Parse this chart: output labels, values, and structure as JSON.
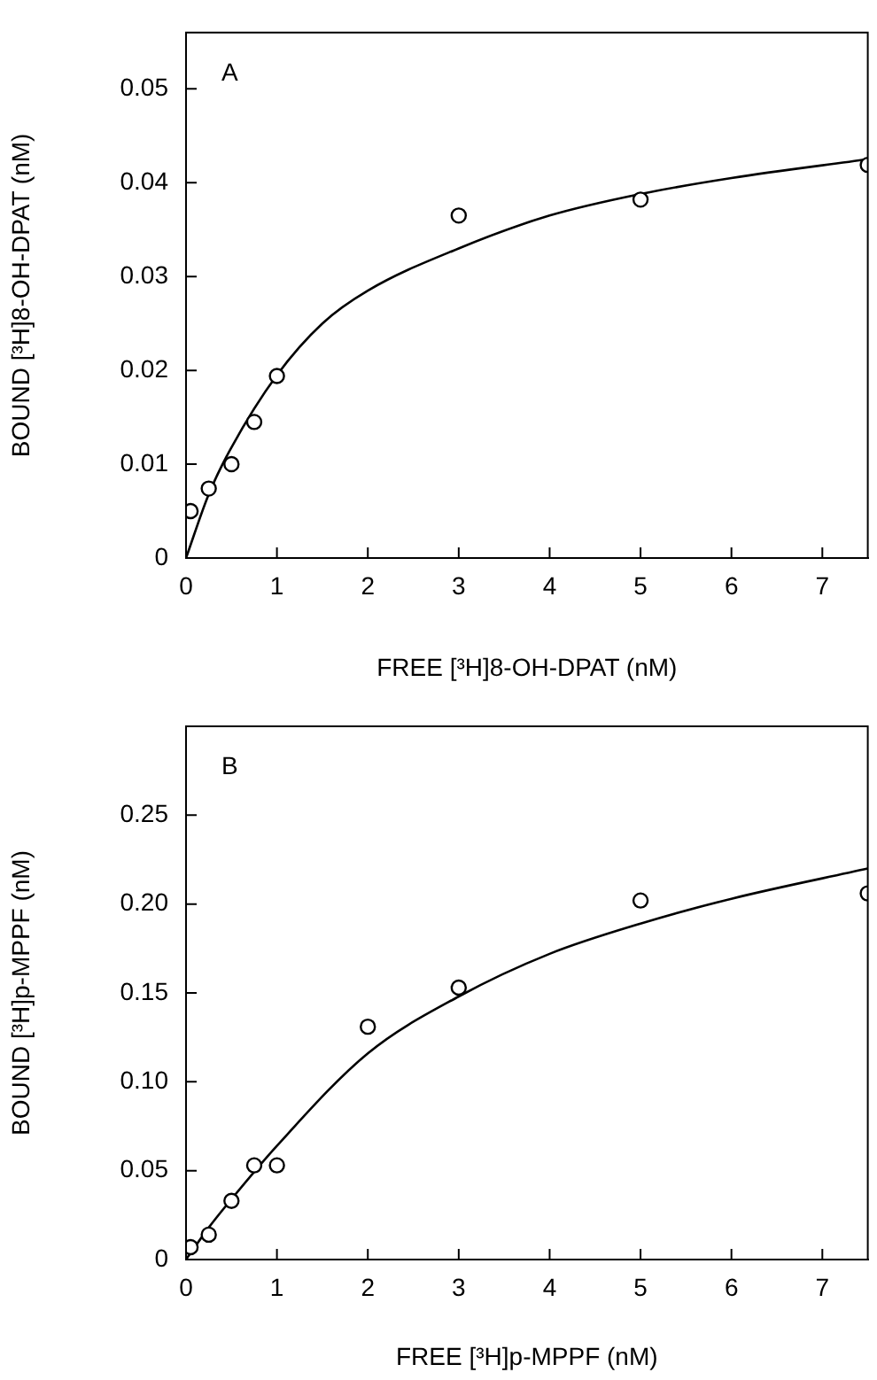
{
  "chart_data": [
    {
      "type": "scatter",
      "xlabel": "FREE [³H]8-OH-DPAT (nM)",
      "ylabel": "BOUND [³H]8-OH-DPAT (nM)",
      "annotations": [
        "A"
      ],
      "xlim": [
        0,
        7.5
      ],
      "xticks": [
        0,
        1,
        2,
        3,
        4,
        5,
        6,
        7
      ],
      "ylim": [
        0,
        0.056
      ],
      "yticks": [
        0,
        {
          "value": 0.01,
          "label": "0.01"
        },
        {
          "value": 0.02,
          "label": "0.02"
        },
        {
          "value": 0.03,
          "label": "0.03"
        },
        {
          "value": 0.04,
          "label": "0.04"
        },
        {
          "value": 0.05,
          "label": "0.05"
        }
      ],
      "grid": false,
      "legend": false,
      "series": [
        {
          "type": "scatter",
          "color": "#000000",
          "marker": "circle",
          "x": [
            0.05,
            0.25,
            0.5,
            0.75,
            1,
            3,
            5,
            7.5
          ],
          "values": [
            0.005,
            0.0074,
            0.01,
            0.0145,
            0.0194,
            0.0365,
            0.0382,
            0.0419
          ]
        },
        {
          "type": "line",
          "color": "#000000",
          "marker": "none",
          "x": [
            0,
            0.25,
            0.5,
            1,
            1.5,
            2,
            3,
            4,
            5,
            6,
            7.5
          ],
          "values": [
            0,
            0.0068,
            0.0118,
            0.0195,
            0.025,
            0.0285,
            0.033,
            0.0365,
            0.0388,
            0.0405,
            0.0425
          ]
        }
      ]
    },
    {
      "type": "scatter",
      "xlabel": "FREE [³H]p-MPPF (nM)",
      "ylabel": "BOUND [³H]p-MPPF (nM)",
      "annotations": [
        "B"
      ],
      "xlim": [
        0,
        7.5
      ],
      "xticks": [
        0,
        1,
        2,
        3,
        4,
        5,
        6,
        7
      ],
      "ylim": [
        0,
        0.3
      ],
      "yticks": [
        0,
        {
          "value": 0.05,
          "label": "0.05"
        },
        {
          "value": 0.1,
          "label": "0.10"
        },
        {
          "value": 0.15,
          "label": "0.15"
        },
        {
          "value": 0.2,
          "label": "0.20"
        },
        {
          "value": 0.25,
          "label": "0.25"
        }
      ],
      "grid": false,
      "legend": false,
      "series": [
        {
          "type": "scatter",
          "color": "#000000",
          "marker": "circle",
          "x": [
            0.05,
            0.25,
            0.5,
            0.75,
            1,
            2,
            3,
            5,
            7.5
          ],
          "values": [
            0.007,
            0.014,
            0.033,
            0.053,
            0.053,
            0.131,
            0.153,
            0.202,
            0.206
          ]
        },
        {
          "type": "line",
          "color": "#000000",
          "marker": "none",
          "x": [
            0,
            0.25,
            0.5,
            1,
            2,
            3,
            4,
            5,
            6,
            7.5
          ],
          "values": [
            0,
            0.018,
            0.034,
            0.064,
            0.116,
            0.148,
            0.172,
            0.189,
            0.203,
            0.22
          ]
        }
      ]
    }
  ]
}
